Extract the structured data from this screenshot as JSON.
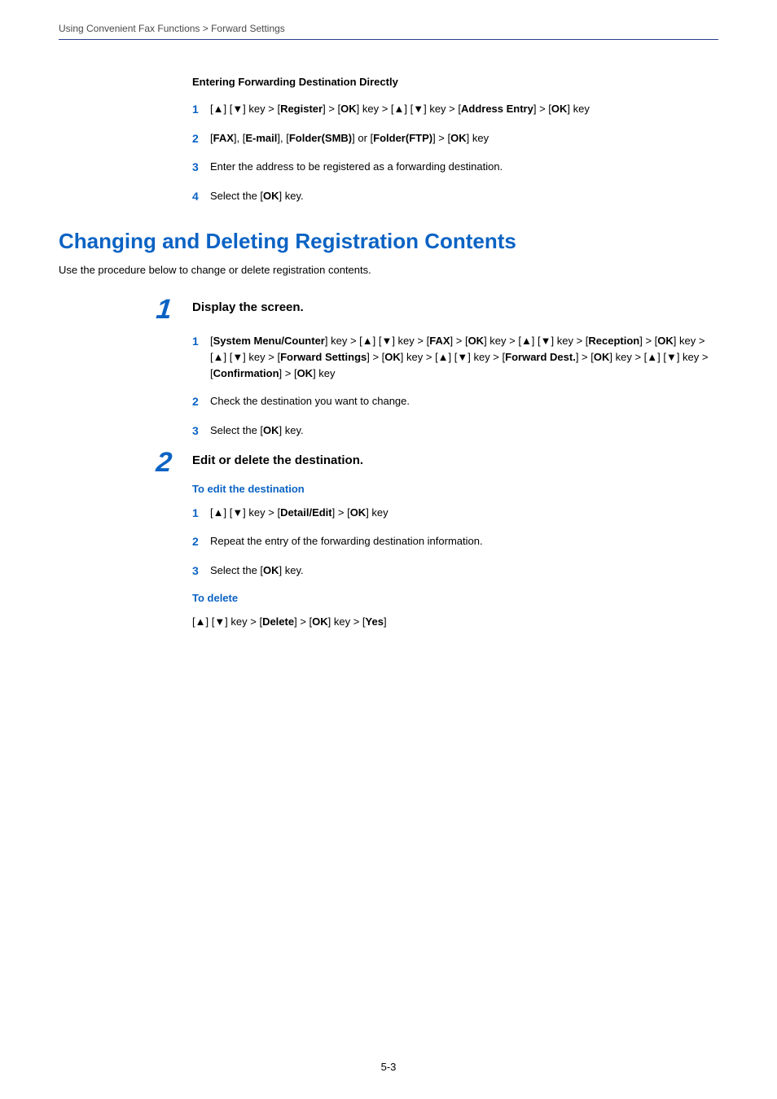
{
  "breadcrumb": "Using Convenient Fax Functions > Forward Settings",
  "section_entering": {
    "title": "Entering Forwarding Destination Directly",
    "items": [
      "[▲] [▼] key > [<b>Register</b>] > [<b>OK</b>] key > [▲] [▼] key > [<b>Address Entry</b>] > [<b>OK</b>] key",
      "[<b>FAX</b>], [<b>E-mail</b>], [<b>Folder(SMB)</b>] or [<b>Folder(FTP)</b>] > [<b>OK</b>] key",
      "Enter the address to be registered as a forwarding destination.",
      "Select the [<b>OK</b>] key."
    ]
  },
  "h1": "Changing and Deleting Registration Contents",
  "intro": "Use the procedure below to change or delete registration contents.",
  "step1": {
    "num": "1",
    "title": "Display the screen.",
    "items": [
      "[<b>System Menu/Counter</b>] key > [▲] [▼] key > [<b>FAX</b>] > [<b>OK</b>] key > [▲] [▼] key > [<b>Reception</b>] > [<b>OK</b>] key > [▲] [▼] key > [<b>Forward Settings</b>] > [<b>OK</b>] key > [▲] [▼] key > [<b>Forward Dest.</b>] > [<b>OK</b>] key > [▲] [▼] key > [<b>Confirmation</b>] > [<b>OK</b>] key",
      "Check the destination you want to change.",
      "Select the [<b>OK</b>] key."
    ]
  },
  "step2": {
    "num": "2",
    "title": "Edit or delete the destination.",
    "edit_heading": "To edit the destination",
    "edit_items": [
      "[▲] [▼] key > [<b>Detail/Edit</b>] > [<b>OK</b>] key",
      "Repeat the entry of the forwarding destination information.",
      "Select the [<b>OK</b>] key."
    ],
    "delete_heading": "To delete",
    "delete_line": "[▲] [▼] key > [<b>Delete</b>] > [<b>OK</b>] key > [<b>Yes</b>]"
  },
  "page_num": "5-3"
}
